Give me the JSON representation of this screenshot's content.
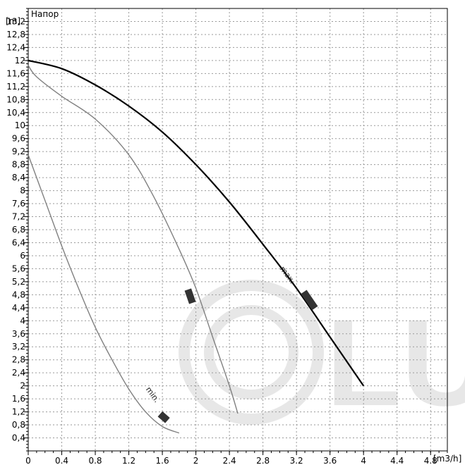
{
  "chart_data": {
    "type": "line",
    "title": "Напор",
    "xlabel": "[m3/h]",
    "ylabel": "[m]",
    "xlim": [
      0,
      5
    ],
    "ylim": [
      0,
      13.6
    ],
    "grid": true,
    "x_ticks": [
      0,
      0.4,
      0.8,
      1.2,
      1.6,
      2,
      2.4,
      2.8,
      3.2,
      3.6,
      4,
      4.4,
      4.8
    ],
    "x_tick_labels": [
      "0",
      "0.4",
      "0.8",
      "1.2",
      "1.6",
      "2",
      "2.4",
      "2.8",
      "3.2",
      "3.6",
      "4",
      "4.4",
      "4.8"
    ],
    "y_ticks": [
      0.4,
      0.8,
      1.2,
      1.6,
      2,
      2.4,
      2.8,
      3.2,
      3.6,
      4,
      4.4,
      4.8,
      5.2,
      5.6,
      6,
      6.4,
      6.8,
      7.2,
      7.6,
      8,
      8.4,
      8.8,
      9.2,
      9.6,
      10,
      10.4,
      10.8,
      11.2,
      11.6,
      12,
      12.4,
      12.8,
      13.2
    ],
    "y_tick_labels": [
      "0,4",
      "0,8",
      "1,2",
      "1,6",
      "2",
      "2,4",
      "2,8",
      "3,2",
      "3,6",
      "4",
      "4,4",
      "4,8",
      "5,2",
      "5,6",
      "6",
      "6,4",
      "6,8",
      "7,2",
      "7,6",
      "8",
      "8,4",
      "8,8",
      "9,2",
      "9,6",
      "10",
      "10,4",
      "10,8",
      "11,2",
      "11,6",
      "12",
      "12,4",
      "12,8",
      "13,2"
    ],
    "series": [
      {
        "name": "max.",
        "color": "#000000",
        "x": [
          0,
          0.4,
          0.8,
          1.2,
          1.6,
          2.0,
          2.4,
          2.8,
          3.2,
          3.6,
          4.0
        ],
        "y": [
          12.0,
          11.75,
          11.25,
          10.6,
          9.8,
          8.8,
          7.65,
          6.35,
          5.0,
          3.5,
          2.0
        ]
      },
      {
        "name": "",
        "color": "#808080",
        "x": [
          0,
          0.1,
          0.4,
          0.8,
          1.2,
          1.5,
          1.8,
          2.0,
          2.2,
          2.4,
          2.5
        ],
        "y": [
          11.85,
          11.5,
          10.9,
          10.2,
          9.1,
          7.8,
          6.2,
          5.0,
          3.5,
          2.0,
          1.15
        ]
      },
      {
        "name": "min.",
        "color": "#808080",
        "x": [
          0,
          0.2,
          0.4,
          0.6,
          0.8,
          1.0,
          1.2,
          1.4,
          1.6,
          1.8
        ],
        "y": [
          9.1,
          7.7,
          6.3,
          5.0,
          3.8,
          2.8,
          1.9,
          1.2,
          0.75,
          0.55
        ]
      }
    ],
    "watermark": "LU"
  }
}
